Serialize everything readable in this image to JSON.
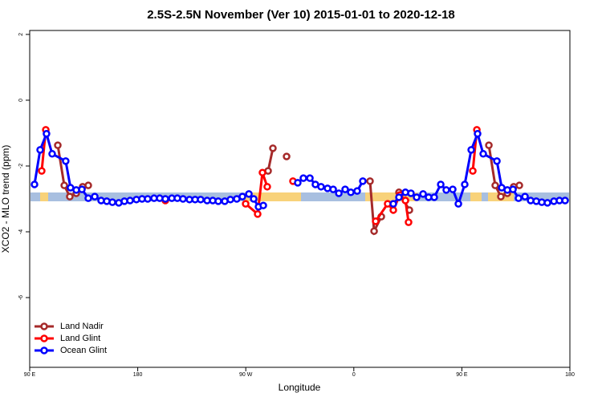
{
  "chart_data": {
    "type": "line",
    "title": "2.5S-2.5N November (Ver 10)   2015-01-01 to 2020-12-18",
    "x_label": "Longitude",
    "y_label": "XCO2 - MLO trend (ppm)",
    "xlim": [
      90,
      540
    ],
    "ylim": [
      -8.12,
      2.12
    ],
    "xticks": [
      {
        "value": 90,
        "label": "90 E"
      },
      {
        "value": 180,
        "label": "180"
      },
      {
        "value": 270,
        "label": "90 W"
      },
      {
        "value": 360,
        "label": "0"
      },
      {
        "value": 450,
        "label": "90 E"
      },
      {
        "value": 540,
        "label": "180"
      }
    ],
    "yticks": [
      2,
      0,
      -2,
      -4,
      -6
    ],
    "legend": "bottom-left",
    "series": [
      {
        "name": "Land Nadir",
        "color": "#a52a2a",
        "x": [
          113.4,
          118.8,
          123.4,
          128.8,
          134.1,
          138.8,
          null,
          288.6,
          292.6,
          null,
          304,
          null,
          373.5,
          376.9,
          382.9,
          null,
          397.6,
          406.3,
          null,
          472.5,
          477.8,
          482.5,
          487.9,
          493.2,
          497.9
        ],
        "values": [
          -1.37,
          -2.59,
          -2.93,
          -2.83,
          -2.63,
          -2.59,
          null,
          -2.15,
          -1.46,
          null,
          -1.71,
          null,
          -2.46,
          -3.98,
          -3.54,
          null,
          -2.8,
          -3.34,
          null,
          -1.37,
          -2.59,
          -2.93,
          -2.83,
          -2.63,
          -2.59
        ]
      },
      {
        "name": "Land Glint",
        "color": "#ff0000",
        "x": [
          100,
          103.4,
          null,
          203,
          null,
          269.9,
          279.9,
          283.9,
          287.9,
          null,
          309.3,
          null,
          378.2,
          388.2,
          392.9,
          398.3,
          403,
          405.6,
          null,
          459.1,
          462.5
        ],
        "values": [
          -2.15,
          -0.9,
          null,
          -3.05,
          null,
          -3.15,
          -3.46,
          -2.2,
          -2.63,
          null,
          -2.46,
          null,
          -3.68,
          -3.15,
          -3.34,
          -2.88,
          -3.05,
          -3.71,
          null,
          -2.15,
          -0.9
        ]
      },
      {
        "name": "Ocean Glint",
        "color": "#0000ff",
        "x": [
          94,
          98.7,
          104,
          108.7,
          120,
          124,
          128.8,
          133.5,
          138.8,
          144.2,
          149.5,
          154.2,
          158.9,
          164.2,
          168.9,
          173.6,
          178.9,
          183.6,
          188.3,
          193.6,
          198.3,
          203,
          208.4,
          213,
          217.7,
          223.1,
          227.8,
          232.4,
          237.8,
          242.5,
          247.1,
          252.5,
          257.2,
          262.5,
          267.2,
          272.6,
          276.6,
          280.6,
          284.6,
          null,
          313.3,
          318,
          323.4,
          328,
          332.7,
          338.1,
          342.8,
          347.5,
          352.8,
          357.5,
          362.8,
          367.5,
          null,
          392.9,
          397.6,
          403,
          407.6,
          412.3,
          417.7,
          422.3,
          427,
          432.4,
          437,
          442.4,
          447.1,
          452.4,
          457.8,
          463.1,
          467.8,
          479.2,
          483.2,
          487.9,
          492.6,
          497.2,
          502.6,
          507.3,
          512,
          516.6,
          521.3,
          526.7,
          531.3,
          536
        ],
        "values": [
          -2.56,
          -1.51,
          -1.02,
          -1.63,
          -1.85,
          -2.66,
          -2.73,
          -2.71,
          -2.98,
          -2.93,
          -3.05,
          -3.07,
          -3.1,
          -3.12,
          -3.07,
          -3.05,
          -3.02,
          -3.0,
          -3.0,
          -2.98,
          -2.98,
          -3.0,
          -2.98,
          -2.98,
          -3.0,
          -3.02,
          -3.02,
          -3.02,
          -3.05,
          -3.05,
          -3.07,
          -3.07,
          -3.02,
          -3.0,
          -2.93,
          -2.85,
          -3.0,
          -3.24,
          -3.2,
          null,
          -2.51,
          -2.37,
          -2.37,
          -2.56,
          -2.63,
          -2.68,
          -2.71,
          -2.83,
          -2.71,
          -2.8,
          -2.76,
          -2.46,
          null,
          -3.15,
          -2.95,
          -2.8,
          -2.83,
          -2.95,
          -2.85,
          -2.95,
          -2.95,
          -2.56,
          -2.73,
          -2.71,
          -3.15,
          -2.56,
          -1.51,
          -1.02,
          -1.63,
          -1.85,
          -2.66,
          -2.73,
          -2.71,
          -2.98,
          -2.93,
          -3.05,
          -3.07,
          -3.1,
          -3.12,
          -3.07,
          -3.05,
          -3.05
        ]
      }
    ]
  }
}
